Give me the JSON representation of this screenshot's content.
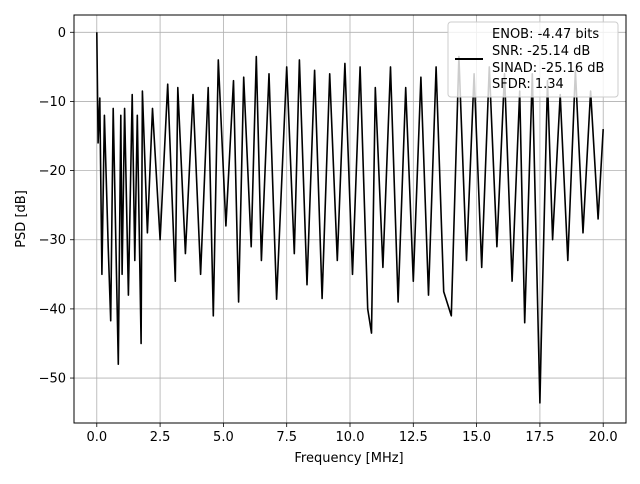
{
  "chart_data": {
    "type": "line",
    "title": "",
    "xlabel": "Frequency [MHz]",
    "ylabel": "PSD [dB]",
    "xlim": [
      -0.9,
      20.9
    ],
    "ylim": [
      -56.5,
      2.5
    ],
    "xticks": [
      0.0,
      2.5,
      5.0,
      7.5,
      10.0,
      12.5,
      15.0,
      17.5,
      20.0
    ],
    "xtick_labels": [
      "0.0",
      "2.5",
      "5.0",
      "7.5",
      "10.0",
      "12.5",
      "15.0",
      "17.5",
      "20.0"
    ],
    "yticks": [
      0,
      -10,
      -20,
      -30,
      -40,
      -50
    ],
    "ytick_labels": [
      "0",
      "−10",
      "−20",
      "−30",
      "−40",
      "−50"
    ],
    "grid": true,
    "legend_position": "top-right",
    "legend_entries": [
      "ENOB: -4.47 bits",
      "SNR: -25.14 dB",
      "SINAD: -25.16 dB",
      "SFDR: 1.34"
    ],
    "line_color": "#000000",
    "series": [
      {
        "x": [
          0.0,
          0.05,
          0.12,
          0.2,
          0.3,
          0.45,
          0.55,
          0.65,
          0.75,
          0.85,
          0.95,
          1.0,
          1.1,
          1.25,
          1.4,
          1.5,
          1.6,
          1.75,
          1.8,
          2.0,
          2.2,
          2.5,
          2.8,
          3.1,
          3.2,
          3.5,
          3.8,
          4.1,
          4.4,
          4.6,
          4.8,
          5.1,
          5.4,
          5.6,
          5.8,
          6.1,
          6.3,
          6.5,
          6.8,
          7.1,
          7.5,
          7.8,
          8.0,
          8.3,
          8.6,
          8.9,
          9.2,
          9.5,
          9.8,
          10.1,
          10.4,
          10.7,
          10.85,
          11.0,
          11.3,
          11.6,
          11.9,
          12.2,
          12.5,
          12.8,
          13.1,
          13.4,
          13.7,
          14.0,
          14.3,
          14.6,
          14.9,
          15.2,
          15.5,
          15.8,
          16.1,
          16.4,
          16.7,
          16.9,
          17.2,
          17.5,
          17.55,
          17.8,
          18.0,
          18.3,
          18.6,
          18.9,
          19.2,
          19.5,
          19.8,
          20.0
        ],
        "y": [
          0.0,
          -16.0,
          -9.5,
          -35.0,
          -12.0,
          -31.0,
          -41.7,
          -11.0,
          -30.0,
          -48.0,
          -12.0,
          -35.0,
          -11.0,
          -38.0,
          -9.0,
          -33.0,
          -12.0,
          -45.0,
          -8.5,
          -29.0,
          -11.0,
          -30.0,
          -7.5,
          -36.0,
          -8.0,
          -32.0,
          -9.0,
          -35.0,
          -8.0,
          -41.0,
          -4.0,
          -28.0,
          -7.0,
          -39.0,
          -6.5,
          -31.0,
          -3.5,
          -33.0,
          -6.0,
          -38.6,
          -5.0,
          -32.0,
          -4.0,
          -36.5,
          -5.5,
          -38.5,
          -6.0,
          -33.0,
          -4.5,
          -35.0,
          -5.0,
          -40.0,
          -43.5,
          -8.0,
          -34.0,
          -5.0,
          -39.0,
          -8.0,
          -36.0,
          -6.5,
          -38.0,
          -5.0,
          -37.5,
          -41.0,
          -3.5,
          -33.0,
          -6.0,
          -34.0,
          -5.0,
          -31.0,
          -6.0,
          -36.0,
          -8.5,
          -42.0,
          -6.0,
          -53.6,
          -45.0,
          -7.0,
          -30.0,
          -9.0,
          -33.0,
          -5.5,
          -29.0,
          -8.5,
          -27.0,
          -14.0
        ]
      }
    ]
  }
}
